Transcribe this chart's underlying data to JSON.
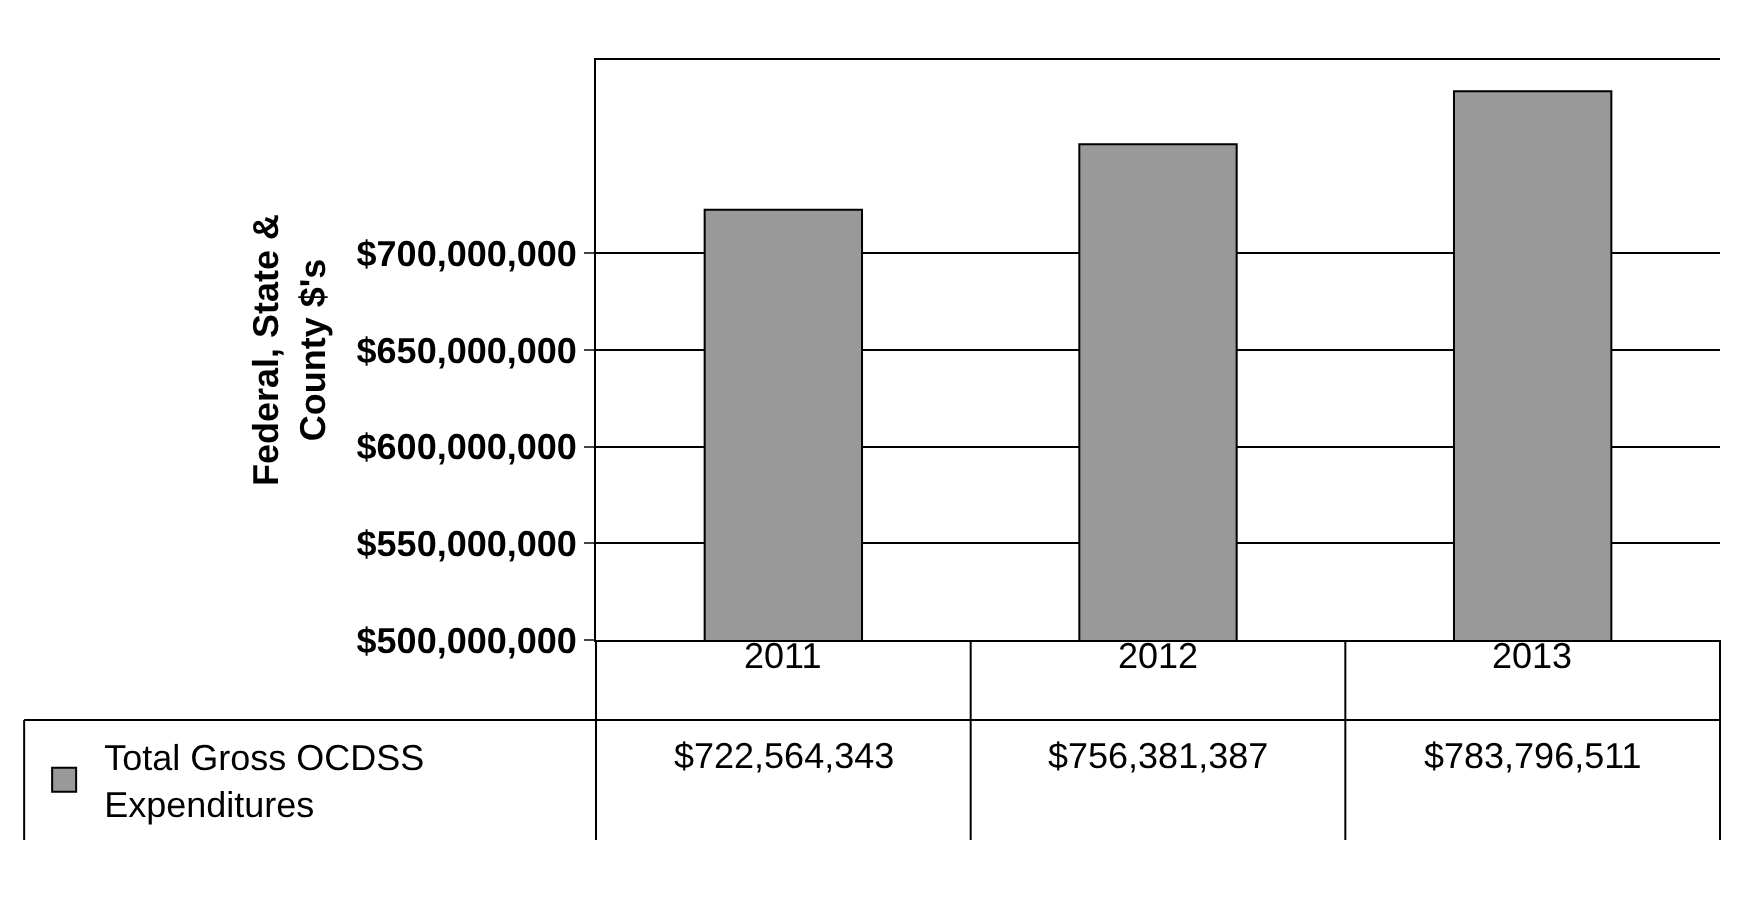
{
  "chart_data": {
    "type": "bar",
    "ylabel": "Federal, State &\nCounty $'s",
    "categories": [
      "2011",
      "2012",
      "2013"
    ],
    "series": [
      {
        "name": "Total Gross OCDSS Expenditures",
        "color": "#999999",
        "values": [
          722564343,
          756381387,
          783796511
        ],
        "value_labels": [
          "$722,564,343",
          "$756,381,387",
          "$783,796,511"
        ]
      }
    ],
    "ylim": [
      500000000,
      800000000
    ],
    "yticks": [
      {
        "value": 500000000,
        "label": "$500,000,000"
      },
      {
        "value": 550000000,
        "label": "$550,000,000"
      },
      {
        "value": 600000000,
        "label": "$600,000,000"
      },
      {
        "value": 650000000,
        "label": "$650,000,000"
      },
      {
        "value": 700000000,
        "label": "$700,000,000"
      }
    ],
    "grid": "y",
    "legend": "bottom left"
  }
}
